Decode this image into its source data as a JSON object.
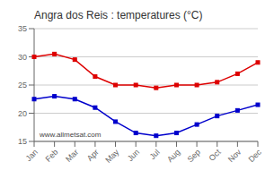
{
  "chart_data": {
    "type": "line",
    "title": "Angra dos Reis : temperatures (°C)",
    "categories": [
      "Jan",
      "Feb",
      "Mar",
      "Apr",
      "May",
      "Jun",
      "Jul",
      "Aug",
      "Sep",
      "Oct",
      "Nov",
      "Dec"
    ],
    "series": [
      {
        "color": "#dd0000",
        "marker": "square",
        "values": [
          30.0,
          30.5,
          29.5,
          26.5,
          25.0,
          25.0,
          24.5,
          25.0,
          25.0,
          25.5,
          27.0,
          29.0
        ]
      },
      {
        "color": "#0000cc",
        "marker": "square",
        "values": [
          22.5,
          23.0,
          22.5,
          21.0,
          18.5,
          16.5,
          16.0,
          16.5,
          18.0,
          19.5,
          20.5,
          21.5
        ]
      }
    ],
    "ylim": [
      15,
      35
    ],
    "yticks": [
      15,
      20,
      25,
      30,
      35
    ],
    "grid": true,
    "annotations": [
      "www.allmetsat.com"
    ]
  }
}
